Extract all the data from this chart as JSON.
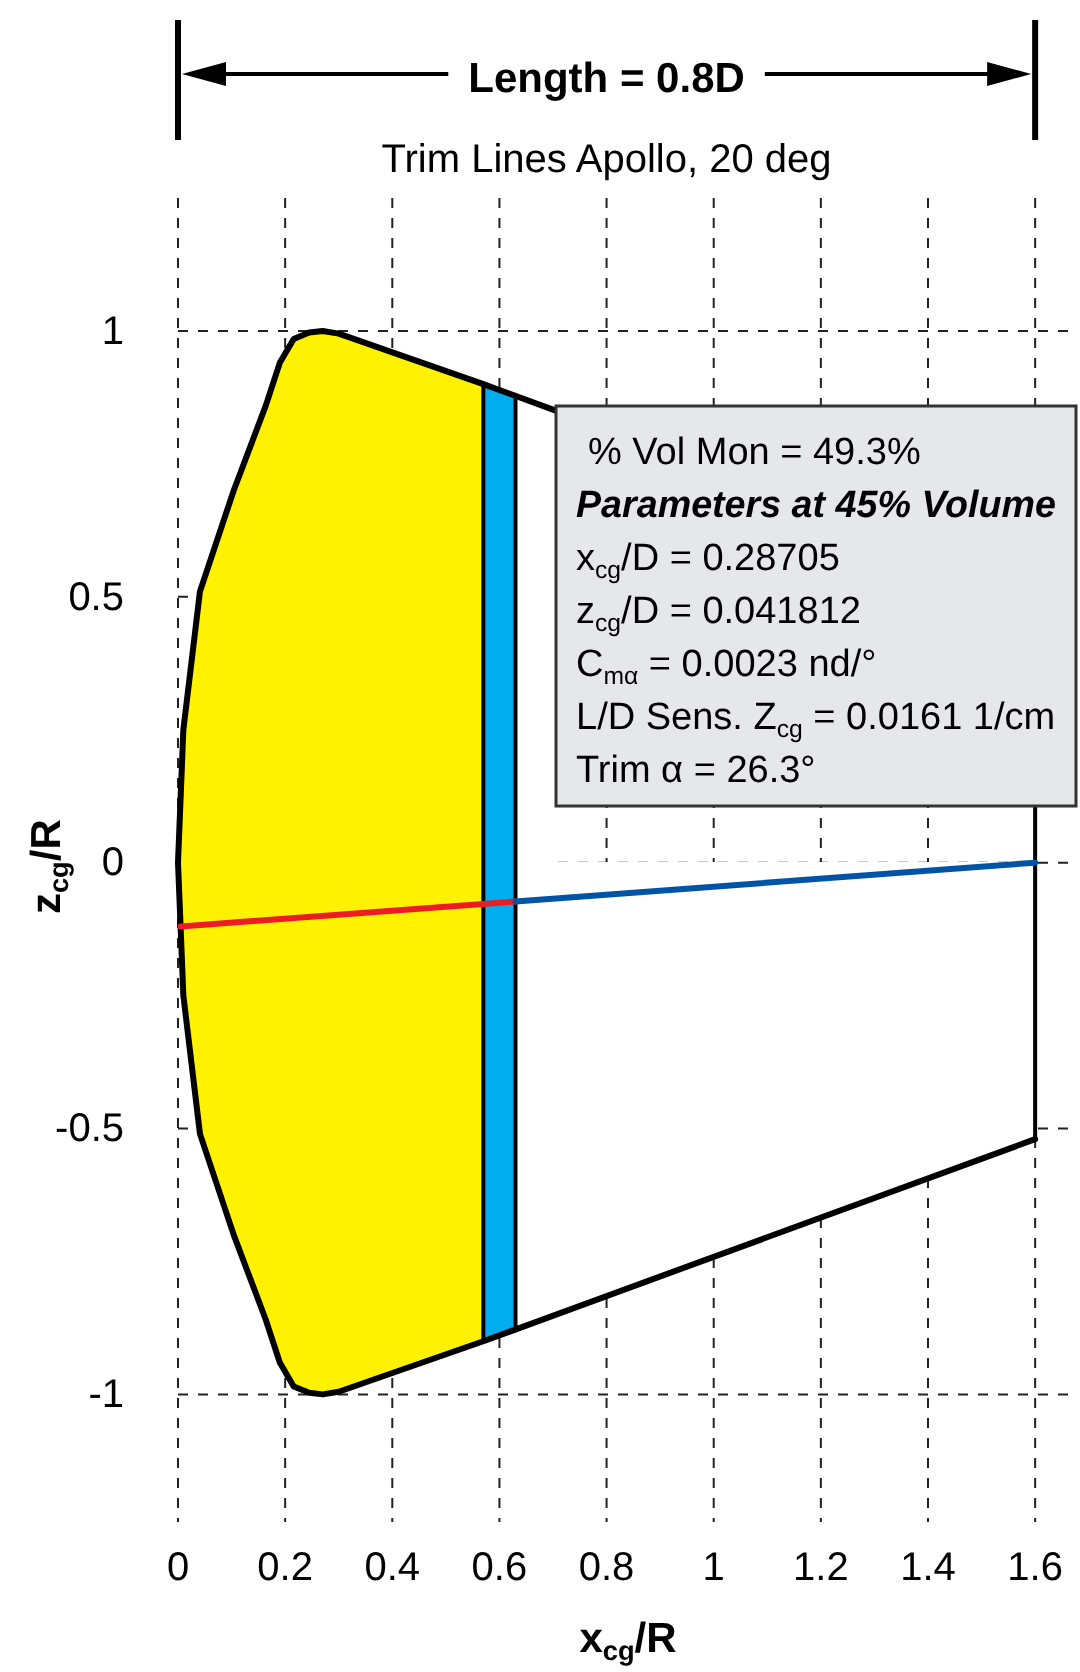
{
  "chart_data": {
    "type": "line",
    "title": "Trim Lines Apollo, 20 deg",
    "xlabel": "x$_{cg}$/R",
    "ylabel": "z$_{cg}$/R",
    "annotations": [
      "Length = 0.8D",
      "% Vol Mon = 49.3%",
      "Parameters at 45% Volume",
      "x$_{cg}$/D = 0.28705",
      "z$_{cg}$/D = 0.041812",
      "C$_{mα}$ = 0.0023 nd/°",
      "L/D Sens. Z$_{cg}$ = 0.0161 1/cm",
      "Trim α = 26.3°"
    ],
    "xlim": [
      0,
      1.68
    ],
    "xticks": [
      0,
      0.2,
      0.4,
      0.6,
      0.8,
      1,
      1.2,
      1.4,
      1.6
    ],
    "ylim": [
      -1.24,
      1.25
    ],
    "yticks": [
      -1,
      -0.5,
      0,
      0.5,
      1
    ],
    "grid": true,
    "marker": "none",
    "line_style": "solid",
    "series": [
      {
        "type": "area",
        "color": "#fff200",
        "x": [
          0,
          0.01,
          0.041,
          0.104,
          0.164,
          0.19,
          0.216,
          0.245,
          0.27,
          0.3,
          0.57
        ],
        "values": [
          0,
          0.25,
          0.51,
          0.7,
          0.86,
          0.94,
          0.985,
          0.997,
          1,
          0.995,
          0.9
        ]
      },
      {
        "type": "area",
        "color": "#fff200",
        "x": [
          0,
          0.01,
          0.041,
          0.104,
          0.164,
          0.19,
          0.216,
          0.245,
          0.27,
          0.3,
          0.57
        ],
        "values": [
          0,
          -0.25,
          -0.51,
          -0.7,
          -0.86,
          -0.94,
          -0.985,
          -0.997,
          -1,
          -0.995,
          -0.9
        ]
      },
      {
        "type": "area",
        "color": "#00aeef",
        "x": [
          0.57,
          0.63
        ],
        "values": [
          0.9,
          0.88
        ]
      },
      {
        "type": "area",
        "color": "#00aeef",
        "x": [
          0.57,
          0.63
        ],
        "values": [
          -0.9,
          -0.88
        ]
      },
      {
        "type": "area",
        "color": "#ffffff",
        "x": [
          0.63,
          0.705
        ],
        "values": [
          0.88,
          0.85
        ]
      },
      {
        "type": "area",
        "color": "#ffffff",
        "x": [
          0.63,
          1.6
        ],
        "values": [
          -0.88,
          -0.52
        ]
      },
      {
        "type": "line",
        "color": "#000000",
        "x": [
          0.705,
          0.57,
          0.3,
          0.27,
          0.245,
          0.216,
          0.19,
          0.164,
          0.104,
          0.041,
          0.01,
          0,
          0.01,
          0.041,
          0.104,
          0.164,
          0.19,
          0.216,
          0.245,
          0.27,
          0.3,
          0.57,
          1.6
        ],
        "values": [
          0.85,
          0.9,
          0.995,
          1,
          0.997,
          0.985,
          0.94,
          0.86,
          0.7,
          0.51,
          0.25,
          0,
          -0.25,
          -0.51,
          -0.7,
          -0.86,
          -0.94,
          -0.985,
          -0.997,
          -1,
          -0.995,
          -0.9,
          -0.52
        ]
      },
      {
        "type": "line",
        "color": "#000000",
        "x": [
          0.57,
          0.57
        ],
        "values": [
          0.9,
          -0.9
        ]
      },
      {
        "type": "line",
        "color": "#000000",
        "x": [
          0.63,
          0.63
        ],
        "values": [
          0.88,
          -0.88
        ]
      },
      {
        "type": "line",
        "color": "#000000",
        "x": [
          1.6,
          1.6
        ],
        "values": [
          0.11,
          -0.52
        ]
      },
      {
        "type": "line",
        "color": "#ed1c24",
        "x": [
          0.005,
          0.63
        ],
        "values": [
          -0.12,
          -0.073
        ]
      },
      {
        "type": "line",
        "color": "#0054a6",
        "x": [
          0.63,
          1.6
        ],
        "values": [
          -0.073,
          0
        ]
      }
    ]
  }
}
